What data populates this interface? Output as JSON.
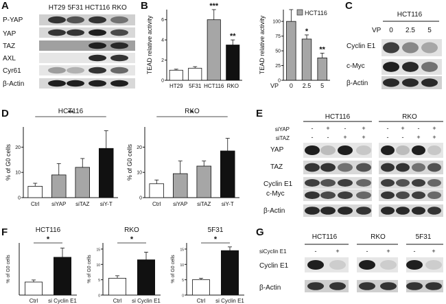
{
  "panel_letters": {
    "A": "A",
    "B": "B",
    "C": "C",
    "D": "D",
    "E": "E",
    "F": "F",
    "G": "G"
  },
  "panelA": {
    "cell_lines": [
      "HT29",
      "5F31",
      "HCT116",
      "RKO"
    ],
    "rows": [
      "P-YAP",
      "YAP",
      "TAZ",
      "AXL",
      "Cyr61",
      "β-Actin"
    ]
  },
  "panelC": {
    "cell_line": "HCT116",
    "vp_label": "VP",
    "doses": [
      "0",
      "2.5",
      "5"
    ],
    "rows": [
      "Cyclin E1",
      "c-Myc",
      "β-Actin"
    ]
  },
  "panelE": {
    "groups": [
      "HCT116",
      "RKO"
    ],
    "row_labels": [
      "siYAP",
      "siTAZ"
    ],
    "siYAP": [
      "-",
      "+",
      "-",
      "+"
    ],
    "siTAZ": [
      "-",
      "-",
      "+",
      "+"
    ],
    "proteins": [
      "YAP",
      "TAZ",
      "Cyclin E1",
      "c-Myc",
      "β-Actin"
    ]
  },
  "panelG": {
    "groups": [
      "HCT116",
      "RKO",
      "5F31"
    ],
    "row_label": "siCyclin E1",
    "signs": [
      "-",
      "+"
    ],
    "proteins": [
      "Cyclin E1",
      "β-Actin"
    ]
  },
  "chart_data": [
    {
      "id": "B1",
      "type": "bar",
      "categories": [
        "HT29",
        "5F31",
        "HCT116",
        "RKO"
      ],
      "values": [
        1.0,
        1.2,
        6.0,
        3.5
      ],
      "errors": [
        0.1,
        0.15,
        1.0,
        0.5
      ],
      "colors": [
        "#ffffff",
        "#ffffff",
        "#a6a6a6",
        "#111111"
      ],
      "significance": [
        "",
        "",
        "***",
        "**"
      ],
      "ylabel": "TEAD relative activity",
      "yticks": [
        "0",
        "2",
        "4",
        "6"
      ],
      "ylim": [
        0,
        7
      ]
    },
    {
      "id": "B2",
      "type": "bar",
      "categories": [
        "0",
        "2.5",
        "5"
      ],
      "xlabel": "VP",
      "values": [
        100,
        70,
        38
      ],
      "errors": [
        20,
        7,
        8
      ],
      "colors": [
        "#a6a6a6",
        "#a6a6a6",
        "#a6a6a6"
      ],
      "significance": [
        "",
        "*",
        "**"
      ],
      "legend": "HCT116",
      "ylabel": "TEAD relative activity",
      "yticks": [
        "0",
        "25",
        "50",
        "75",
        "100"
      ],
      "ylim": [
        0,
        120
      ]
    },
    {
      "id": "D1",
      "type": "bar",
      "title": "HCT116",
      "categories": [
        "Ctrl",
        "siYAP",
        "siTAZ",
        "siY-T"
      ],
      "values": [
        4.5,
        9.0,
        12.0,
        19.5
      ],
      "errors": [
        1.2,
        4.5,
        3.5,
        7.0
      ],
      "colors": [
        "#ffffff",
        "#a6a6a6",
        "#a6a6a6",
        "#111111"
      ],
      "significance": "**",
      "ylabel": "% of G0 cells",
      "yticks": [
        "0",
        "10",
        "20"
      ],
      "ylim": [
        0,
        28
      ]
    },
    {
      "id": "D2",
      "type": "bar",
      "title": "RKO",
      "categories": [
        "Ctrl",
        "siYAP",
        "siTAZ",
        "siY-T"
      ],
      "values": [
        5.5,
        9.5,
        12.5,
        18.5
      ],
      "errors": [
        1.5,
        5.0,
        2.0,
        5.0
      ],
      "colors": [
        "#ffffff",
        "#a6a6a6",
        "#a6a6a6",
        "#111111"
      ],
      "significance": "*",
      "ylabel": "% of G0 cells",
      "yticks": [
        "0",
        "10",
        "20"
      ],
      "ylim": [
        0,
        28
      ]
    },
    {
      "id": "F1",
      "type": "bar",
      "title": "HCT116",
      "categories": [
        "Ctrl",
        "si Cyclin E1"
      ],
      "values": [
        5.0,
        14.5
      ],
      "errors": [
        0.8,
        3.5
      ],
      "colors": [
        "#ffffff",
        "#111111"
      ],
      "significance": "*",
      "ylabel": "% of G0 cells",
      "yticks": [],
      "ylim": [
        0,
        20
      ]
    },
    {
      "id": "F2",
      "type": "bar",
      "title": "RKO",
      "categories": [
        "Ctrl",
        "si Cyclin E1"
      ],
      "values": [
        5.5,
        11.5
      ],
      "errors": [
        0.8,
        2.5
      ],
      "colors": [
        "#ffffff",
        "#111111"
      ],
      "significance": "*",
      "ylabel": "% of G0 cells",
      "yticks": [
        "0",
        "5",
        "10",
        "15"
      ],
      "ylim": [
        0,
        17
      ]
    },
    {
      "id": "F3",
      "type": "bar",
      "title": "5F31",
      "categories": [
        "Ctrl",
        "si Cyclin E1"
      ],
      "values": [
        5.0,
        14.5
      ],
      "errors": [
        0.5,
        1.2
      ],
      "colors": [
        "#ffffff",
        "#111111"
      ],
      "significance": "*",
      "ylabel": "% of G0 cells",
      "yticks": [
        "0",
        "5",
        "10",
        "15"
      ],
      "ylim": [
        0,
        17
      ]
    }
  ]
}
